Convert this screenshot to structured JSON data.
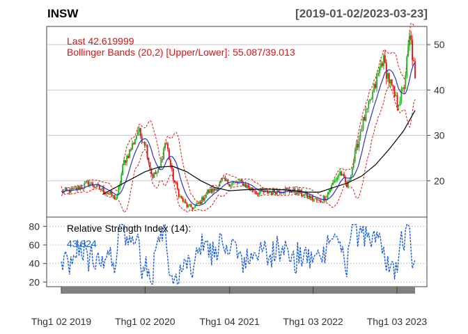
{
  "header": {
    "symbol": "INSW",
    "date_range": "[2019-01-02/2023-03-23]"
  },
  "colors": {
    "candle_up": "#19b019",
    "candle_down": "#e01010",
    "bollinger": "#e01010",
    "ma_fast": "#3030c8",
    "ma_slow": "#000000",
    "rsi": "#1a5cd8",
    "grid": "#c8c8c8",
    "annotation": "#e01010",
    "x_band": "#808080"
  },
  "chart_data": [
    {
      "type": "line",
      "panel": "price",
      "title": "",
      "annotations": {
        "last": "Last 42.619999",
        "bbands": "Bollinger Bands (20,2) [Upper/Lower]: 55.087/39.013"
      },
      "y_ticks": [
        20,
        30,
        40,
        50
      ],
      "ylim": [
        12,
        54
      ],
      "y_axis_position": "right",
      "grid": true,
      "x_labels": [
        "Thg1 02 2019",
        "Thg1 02 2020",
        "Thg1 04 2021",
        "Thg1 03 2022",
        "Thg1 03 2023"
      ],
      "x_label_dates": [
        "2019-01-02",
        "2020-01-02",
        "2021-01-04",
        "2022-01-03",
        "2023-01-03"
      ],
      "xlim": [
        "2019-01-02",
        "2023-03-23"
      ],
      "series": [
        {
          "kind": "close",
          "dates": [
            "2019-01-02",
            "2019-03-01",
            "2019-05-01",
            "2019-07-01",
            "2019-09-01",
            "2019-10-01",
            "2019-11-01",
            "2019-12-01",
            "2020-01-02",
            "2020-02-01",
            "2020-03-01",
            "2020-04-01",
            "2020-05-01",
            "2020-06-01",
            "2020-07-01",
            "2020-08-01",
            "2020-09-01",
            "2020-10-01",
            "2020-11-01",
            "2020-12-01",
            "2021-01-04",
            "2021-03-01",
            "2021-05-01",
            "2021-07-01",
            "2021-09-01",
            "2021-11-01",
            "2022-01-03",
            "2022-02-01",
            "2022-03-01",
            "2022-04-01",
            "2022-05-01",
            "2022-06-01",
            "2022-07-01",
            "2022-08-01",
            "2022-09-01",
            "2022-10-01",
            "2022-11-01",
            "2022-12-01",
            "2023-01-03",
            "2023-02-01",
            "2023-03-01",
            "2023-03-23"
          ],
          "values": [
            17.5,
            18,
            19.5,
            18,
            16,
            24,
            27,
            31,
            28.5,
            21,
            22,
            29,
            21,
            16.5,
            14.5,
            14,
            15.5,
            17.5,
            18,
            20,
            19.5,
            19.5,
            17.5,
            17.5,
            18,
            17.5,
            16,
            15.5,
            16.5,
            19.5,
            22,
            18.5,
            25,
            32,
            36,
            41,
            47,
            42,
            37,
            40,
            52,
            42.6
          ]
        },
        {
          "kind": "sma_slow",
          "dates": [
            "2019-07-01",
            "2019-10-01",
            "2020-01-02",
            "2020-03-01",
            "2020-05-01",
            "2020-07-01",
            "2020-09-01",
            "2020-11-01",
            "2021-01-04",
            "2021-03-01",
            "2021-06-01",
            "2021-09-01",
            "2021-12-01",
            "2022-02-01",
            "2022-04-01",
            "2022-06-01",
            "2022-08-01",
            "2022-10-01",
            "2022-12-01",
            "2023-02-01",
            "2023-03-23"
          ],
          "values": [
            17,
            19.5,
            22,
            23,
            23.2,
            22,
            20,
            18.5,
            17.8,
            18,
            18.2,
            18,
            17.5,
            17.5,
            18.5,
            19.5,
            21,
            23.5,
            27,
            31,
            35.5
          ]
        }
      ]
    },
    {
      "type": "line",
      "panel": "rsi",
      "title": "Relative Strength Index (14):",
      "last_value_label": "43.824",
      "last_value": 43.824,
      "y_ticks": [
        20,
        40,
        60,
        80
      ],
      "ylim": [
        15,
        90
      ],
      "y_axis_position": "left",
      "grid": true,
      "series_name": "RSI"
    }
  ]
}
